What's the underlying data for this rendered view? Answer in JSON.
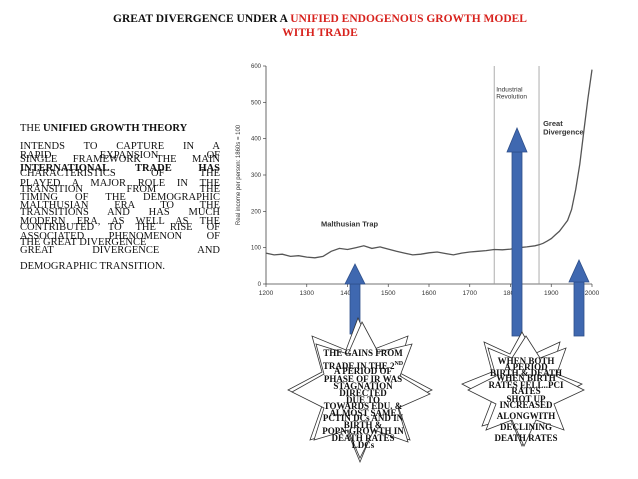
{
  "slide": {
    "title_black": "GREAT DIVERGENCE UNDER A ",
    "title_red_1": "UNIFIED ENDOGENOUS GROWTH MODEL",
    "title_red_2": "WITH TRADE"
  },
  "left": {
    "l1a": "THE ",
    "l1b": "UNIFIED GROWTH THEORY",
    "l2": "INTENDS TO CAPTURE IN A",
    "l2o": "RAPID EXPANSION OF",
    "l3": "SINGLE FRAMEWORK THE MAIN",
    "l3o": "INTERNATIONAL TRADE HAS",
    "l4": "CHARACTERISTICS OF THE",
    "l4o": "PLAYED A MAJOR ROLE IN THE",
    "l5": "TRANSITION FROM THE",
    "l5o": "TIMING OF THE DEMOGRAPHIC",
    "l6": "MALTHUSIAN ERA TO THE",
    "l6o": "TRANSITIONS AND HAS MUCH",
    "l7": "MODERN ERA, AS WELL AS THE",
    "l7o": "CONTRIBUTED TO THE RISE OF",
    "l8": "ASSOCIATED PHENOMENON OF",
    "l8o": "THE GREAT DIVERGENCE",
    "l9": "GREAT DIVERGENCE AND",
    "l10": "DEMOGRAPHIC TRANSITION."
  },
  "chart_data": {
    "type": "line",
    "ylabel": "Real income per person: 1860s = 100",
    "ylim": [
      0,
      600
    ],
    "yticks": [
      0,
      100,
      200,
      300,
      400,
      500,
      600
    ],
    "xlim": [
      1200,
      2000
    ],
    "xticks": [
      1200,
      1300,
      1400,
      1500,
      1600,
      1700,
      1800,
      1900,
      2000
    ],
    "grid": false,
    "vlines": [
      1760,
      1870
    ],
    "annotations": {
      "malthus": "Malthusian Trap",
      "industrial_1": "Industrial",
      "industrial_2": "Revolution",
      "great_1": "Great",
      "great_2": "Divergence"
    },
    "series": [
      {
        "x": [
          1200,
          1220,
          1240,
          1260,
          1280,
          1300,
          1320,
          1340,
          1360,
          1380,
          1400,
          1420,
          1440,
          1460,
          1480,
          1500,
          1520,
          1540,
          1560,
          1580,
          1600,
          1620,
          1640,
          1660,
          1680,
          1700,
          1720,
          1740,
          1760,
          1780,
          1800,
          1820,
          1840,
          1860,
          1870,
          1880,
          1890,
          1900,
          1910,
          1920,
          1930,
          1940,
          1950,
          1960,
          1970,
          1980,
          1990,
          2000
        ],
        "y": [
          85,
          80,
          82,
          76,
          78,
          74,
          72,
          76,
          90,
          98,
          95,
          100,
          105,
          98,
          102,
          96,
          90,
          85,
          80,
          82,
          86,
          88,
          84,
          80,
          85,
          88,
          90,
          92,
          95,
          94,
          96,
          100,
          102,
          105,
          108,
          112,
          118,
          125,
          135,
          145,
          160,
          175,
          205,
          260,
          330,
          420,
          510,
          590
        ]
      }
    ]
  },
  "stars": {
    "left_top": "THE GAINS FROM",
    "left_l1": "TRADE IN THE 2",
    "left_sup": "ND",
    "left_l2": "A PERIOD OF",
    "left_l3": "PHASE OF IR WAS",
    "left_l4": "STAGNATION",
    "left_l5": "DIRECTED",
    "left_l6": "DUE TO",
    "left_l7": "TOWARDS EDU. &",
    "left_l8": "ALMOST SAME",
    "left_l9": "PCTIN DCs AND IN",
    "left_l10": "BIRTH &",
    "left_l11": "POPN GROWTH IN",
    "left_l12": "DEATH RATES",
    "left_l13": "LDCs",
    "right_l1": "WHEN BOTH",
    "right_l2": "A PERIOD",
    "right_l3": "BIRTH & DEATH",
    "right_l4": "WHEN BIRTH",
    "right_l5": "RATES FELL..PCI",
    "right_l6": "RATES",
    "right_l7": "SHOT UP",
    "right_l8": "INCREASED",
    "right_l9": "ALONGWITH",
    "right_l10": "DECLINING",
    "right_l11": "DEATH RATES"
  },
  "colors": {
    "title_red": "#d8231e",
    "arrow_blue": "#3f68b0",
    "arrow_edge": "#2e4f8a",
    "star_fill": "#ffffff",
    "star_stroke": "#333333"
  }
}
